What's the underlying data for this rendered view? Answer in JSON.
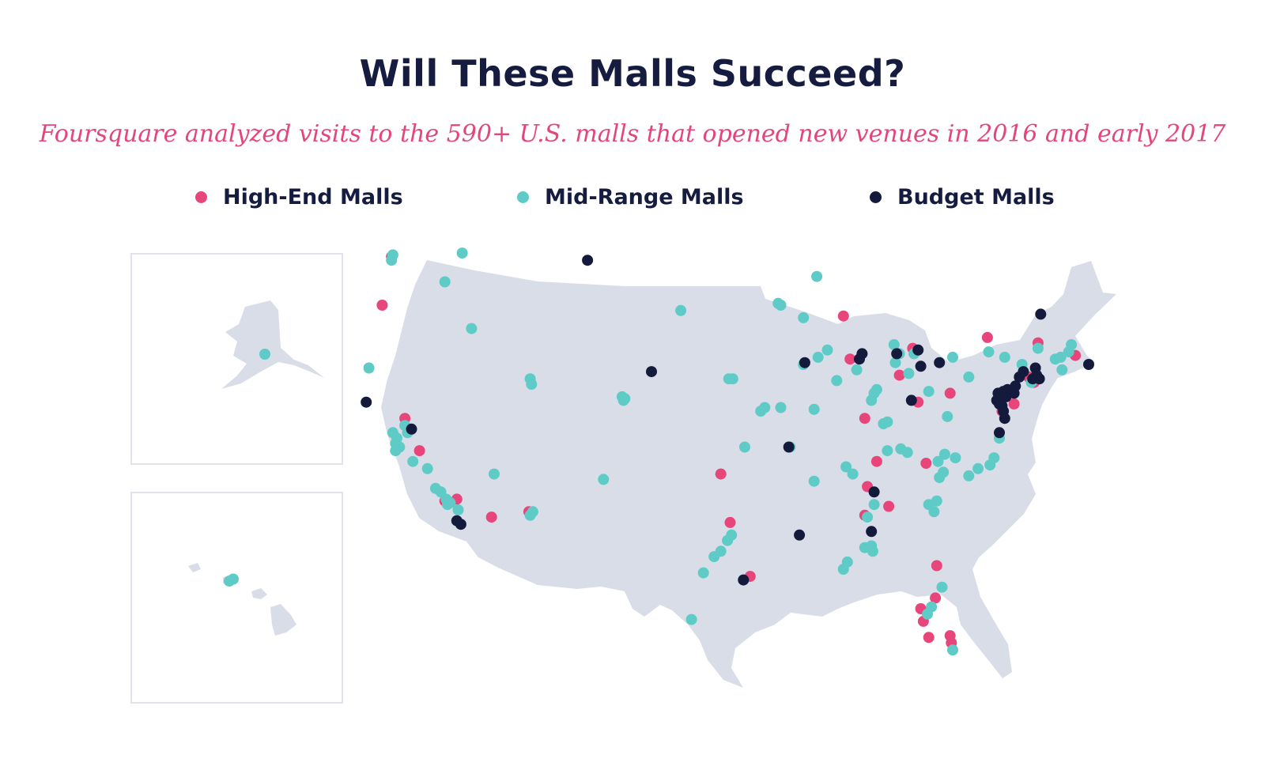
{
  "title": "Will These Malls Succeed?",
  "subtitle": "Foursquare analyzed visits to the 590+ U.S. malls that opened new venues in 2016 and early 2017",
  "colors": {
    "high_end": "#e8467a",
    "mid_range": "#5ecbc6",
    "budget": "#141a3c",
    "land": "#d9dde8"
  },
  "legend": {
    "high_end": "High-End Malls",
    "mid_range": "Mid-Range Malls",
    "budget": "Budget Malls"
  },
  "malls": {
    "high_end": [
      [
        -122.3,
        47.6
      ],
      [
        -123.0,
        44.9
      ],
      [
        -121.3,
        38.6
      ],
      [
        -120.2,
        36.8
      ],
      [
        -118.3,
        34.0
      ],
      [
        -117.4,
        34.1
      ],
      [
        -114.8,
        33.1
      ],
      [
        -112.0,
        33.4
      ],
      [
        -88.4,
        44.3
      ],
      [
        -87.9,
        41.9
      ],
      [
        -84.2,
        41.0
      ],
      [
        -83.2,
        42.5
      ],
      [
        -80.4,
        40.0
      ],
      [
        -77.6,
        43.1
      ],
      [
        -82.8,
        39.5
      ],
      [
        -76.5,
        39.0
      ],
      [
        -75.6,
        39.4
      ],
      [
        -74.1,
        40.6
      ],
      [
        -74.5,
        40.9
      ],
      [
        -73.8,
        42.8
      ],
      [
        -71.0,
        42.1
      ],
      [
        -86.8,
        38.6
      ],
      [
        -85.9,
        36.2
      ],
      [
        -86.6,
        34.8
      ],
      [
        -85.0,
        33.7
      ],
      [
        -86.8,
        33.2
      ],
      [
        -82.2,
        36.1
      ],
      [
        -97.6,
        35.5
      ],
      [
        -96.9,
        32.8
      ],
      [
        -95.4,
        29.8
      ],
      [
        -81.4,
        30.4
      ],
      [
        -82.6,
        28.0
      ],
      [
        -82.4,
        27.3
      ],
      [
        -81.5,
        28.6
      ],
      [
        -82.0,
        26.4
      ],
      [
        -80.3,
        26.1
      ],
      [
        -80.4,
        26.5
      ]
    ],
    "mid_range": [
      [
        -122.3,
        47.4
      ],
      [
        -122.2,
        47.7
      ],
      [
        -117.0,
        47.8
      ],
      [
        -118.3,
        46.2
      ],
      [
        -124.0,
        41.4
      ],
      [
        -116.3,
        43.6
      ],
      [
        -121.3,
        38.2
      ],
      [
        -121.9,
        37.5
      ],
      [
        -122.2,
        37.8
      ],
      [
        -122.0,
        37.2
      ],
      [
        -121.7,
        37.0
      ],
      [
        -121.1,
        37.8
      ],
      [
        -122.0,
        36.8
      ],
      [
        -120.7,
        36.2
      ],
      [
        -119.6,
        35.8
      ],
      [
        -119.0,
        34.7
      ],
      [
        -118.6,
        34.5
      ],
      [
        -118.2,
        34.1
      ],
      [
        -117.9,
        33.9
      ],
      [
        -118.1,
        33.8
      ],
      [
        -117.3,
        33.5
      ],
      [
        -114.6,
        35.5
      ],
      [
        -111.9,
        33.2
      ],
      [
        -111.7,
        33.4
      ],
      [
        -106.4,
        35.2
      ],
      [
        -111.9,
        40.8
      ],
      [
        -111.8,
        40.5
      ],
      [
        -105.0,
        39.8
      ],
      [
        -104.9,
        39.6
      ],
      [
        -104.8,
        39.7
      ],
      [
        -100.6,
        44.6
      ],
      [
        -149.9,
        61.2
      ],
      [
        -157.8,
        21.3
      ],
      [
        -157.6,
        21.4
      ],
      [
        -93.1,
        44.9
      ],
      [
        -93.3,
        45.0
      ],
      [
        -91.4,
        44.2
      ],
      [
        -90.4,
        46.5
      ],
      [
        -97.0,
        40.8
      ],
      [
        -96.7,
        40.8
      ],
      [
        -94.6,
        39.0
      ],
      [
        -94.3,
        39.2
      ],
      [
        -93.1,
        39.2
      ],
      [
        -90.6,
        39.1
      ],
      [
        -95.8,
        37.0
      ],
      [
        -92.4,
        37.0
      ],
      [
        -89.6,
        42.4
      ],
      [
        -90.3,
        42.0
      ],
      [
        -91.4,
        41.6
      ],
      [
        -88.9,
        40.7
      ],
      [
        -87.4,
        41.3
      ],
      [
        -85.9,
        40.2
      ],
      [
        -86.1,
        40.0
      ],
      [
        -86.3,
        39.6
      ],
      [
        -85.4,
        38.3
      ],
      [
        -85.1,
        38.4
      ],
      [
        -84.5,
        41.7
      ],
      [
        -84.6,
        42.7
      ],
      [
        -83.5,
        41.1
      ],
      [
        -84.2,
        42.2
      ],
      [
        -83.1,
        42.2
      ],
      [
        -82.0,
        40.1
      ],
      [
        -80.2,
        42.0
      ],
      [
        -79.0,
        40.9
      ],
      [
        -80.6,
        38.7
      ],
      [
        -77.5,
        42.3
      ],
      [
        -76.3,
        42.0
      ],
      [
        -75.0,
        41.6
      ],
      [
        -73.8,
        42.5
      ],
      [
        -72.5,
        41.9
      ],
      [
        -72.1,
        42.0
      ],
      [
        -71.3,
        42.7
      ],
      [
        -71.5,
        42.3
      ],
      [
        -72.0,
        41.3
      ],
      [
        -74.3,
        40.6
      ],
      [
        -88.2,
        35.9
      ],
      [
        -87.7,
        35.5
      ],
      [
        -90.6,
        35.1
      ],
      [
        -85.1,
        36.8
      ],
      [
        -84.1,
        36.9
      ],
      [
        -83.6,
        36.7
      ],
      [
        -81.3,
        36.2
      ],
      [
        -80.8,
        36.6
      ],
      [
        -80.0,
        36.4
      ],
      [
        -80.9,
        35.6
      ],
      [
        -81.2,
        35.3
      ],
      [
        -79.0,
        35.4
      ],
      [
        -78.3,
        35.8
      ],
      [
        -77.1,
        36.4
      ],
      [
        -77.4,
        36.0
      ],
      [
        -76.7,
        37.5
      ],
      [
        -86.1,
        33.8
      ],
      [
        -86.6,
        33.1
      ],
      [
        -86.8,
        31.4
      ],
      [
        -86.2,
        31.2
      ],
      [
        -86.3,
        31.5
      ],
      [
        -88.1,
        30.6
      ],
      [
        -88.4,
        30.2
      ],
      [
        -81.4,
        34.0
      ],
      [
        -81.6,
        33.4
      ],
      [
        -82.0,
        33.8
      ],
      [
        -96.8,
        32.1
      ],
      [
        -97.1,
        31.8
      ],
      [
        -97.6,
        31.2
      ],
      [
        -98.1,
        30.9
      ],
      [
        -98.9,
        30.0
      ],
      [
        -99.8,
        27.4
      ],
      [
        -81.0,
        29.2
      ],
      [
        -81.8,
        28.1
      ],
      [
        -82.1,
        27.7
      ],
      [
        -80.2,
        25.7
      ]
    ],
    "budget": [
      [
        -124.2,
        39.5
      ],
      [
        -120.8,
        38.0
      ],
      [
        -117.4,
        32.9
      ],
      [
        -117.1,
        32.7
      ],
      [
        -107.6,
        47.4
      ],
      [
        -102.8,
        41.2
      ],
      [
        -91.3,
        41.7
      ],
      [
        -92.5,
        37.0
      ],
      [
        -91.7,
        32.1
      ],
      [
        -95.9,
        29.6
      ],
      [
        -87.0,
        42.2
      ],
      [
        -87.2,
        41.9
      ],
      [
        -83.3,
        39.6
      ],
      [
        -84.4,
        42.2
      ],
      [
        -82.6,
        41.5
      ],
      [
        -82.8,
        42.4
      ],
      [
        -81.2,
        41.7
      ],
      [
        -76.7,
        37.8
      ],
      [
        -86.1,
        34.5
      ],
      [
        -86.3,
        32.3
      ],
      [
        -73.6,
        44.4
      ],
      [
        -74.9,
        41.2
      ],
      [
        -75.2,
        40.9
      ],
      [
        -75.5,
        40.4
      ],
      [
        -75.6,
        40.0
      ],
      [
        -76.1,
        40.2
      ],
      [
        -76.4,
        40.1
      ],
      [
        -76.2,
        39.8
      ],
      [
        -76.8,
        40.0
      ],
      [
        -76.9,
        39.6
      ],
      [
        -76.5,
        39.3
      ],
      [
        -76.7,
        39.4
      ],
      [
        -76.4,
        39.0
      ],
      [
        -76.3,
        38.6
      ],
      [
        -74.0,
        41.4
      ],
      [
        -73.7,
        40.8
      ],
      [
        -73.9,
        41.0
      ],
      [
        -74.0,
        40.9
      ],
      [
        -74.2,
        40.8
      ],
      [
        -70.0,
        41.6
      ]
    ]
  }
}
